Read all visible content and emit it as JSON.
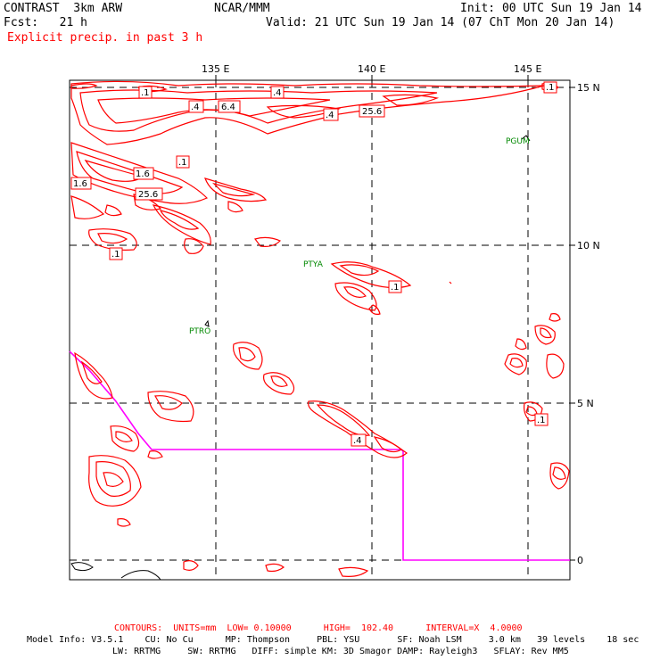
{
  "header": {
    "model_line": "CONTRAST  3km ARW",
    "org": "NCAR/MMM",
    "init": "Init: 00 UTC Sun 19 Jan 14",
    "fcst": "Fcst:   21 h",
    "valid": "Valid: 21 UTC Sun 19 Jan 14 (07 ChT Mon 20 Jan 14)",
    "field": "Explicit precip. in past 3 h"
  },
  "map": {
    "lon_labels": [
      "135 E",
      "140 E",
      "145 E"
    ],
    "lat_labels": [
      "15 N",
      "10 N",
      "5 N",
      "0"
    ],
    "stations": [
      "PGUM",
      "PTYA",
      "PTRO"
    ],
    "contour_labels": [
      ".1",
      ".4",
      "6.4",
      ".4",
      ".4",
      "25.6",
      ".1",
      "1.6",
      "1.6",
      "25.6",
      ".1",
      ".1",
      ".1",
      ".4",
      ".1"
    ],
    "colors": {
      "contour": "#ff0000",
      "boundary": "#ff00ff",
      "station": "#008800",
      "grid": "#000000"
    }
  },
  "footer": {
    "contours": "CONTOURS:  UNITS=mm  LOW= 0.10000      HIGH=  102.40      INTERVAL=X  4.0000",
    "model_info": "Model Info: V3.5.1    CU: No Cu      MP: Thompson     PBL: YSU       SF: Noah LSM     3.0 km   39 levels    18 sec",
    "physics": "LW: RRTMG     SW: RRTMG   DIFF: simple KM: 3D Smagor DAMP: Rayleigh3   SFLAY: Rev MM5"
  }
}
